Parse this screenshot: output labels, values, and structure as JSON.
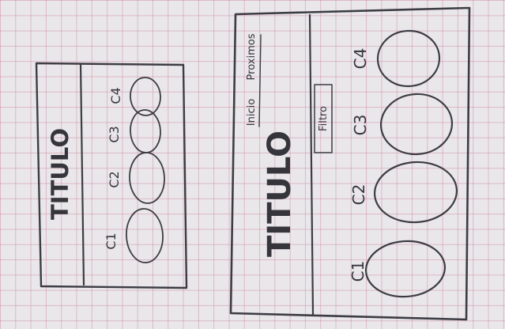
{
  "sketches": [
    {
      "title": "TITULO",
      "cards": [
        "C1",
        "C2",
        "C3",
        "C4"
      ]
    },
    {
      "title": "TITULO",
      "nav": [
        "Inicio",
        "Proximos"
      ],
      "filter": "Filtro",
      "cards": [
        "C1",
        "C2",
        "C3",
        "C4"
      ]
    }
  ]
}
